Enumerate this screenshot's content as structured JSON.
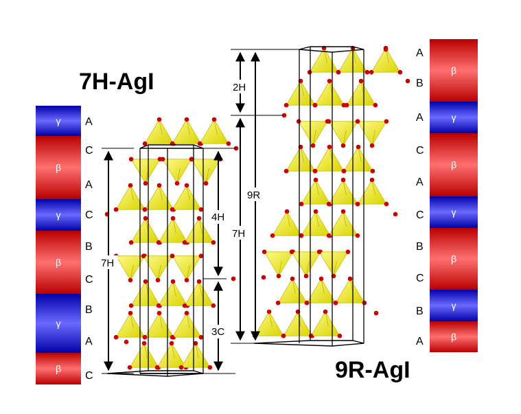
{
  "titles": {
    "left": "7H-AgI",
    "right": "9R-AgI"
  },
  "left_column": {
    "bands": [
      {
        "phase": "γ",
        "color": "blue"
      },
      {
        "phase": "β",
        "color": "red"
      },
      {
        "phase": "γ",
        "color": "blue"
      },
      {
        "phase": "β",
        "color": "red"
      },
      {
        "phase": "γ",
        "color": "blue"
      },
      {
        "phase": "β",
        "color": "red"
      }
    ],
    "stacking": [
      "A",
      "C",
      "A",
      "C",
      "B",
      "C",
      "B",
      "A",
      "C"
    ]
  },
  "right_column": {
    "bands": [
      {
        "phase": "β",
        "color": "red"
      },
      {
        "phase": "γ",
        "color": "blue"
      },
      {
        "phase": "β",
        "color": "red"
      },
      {
        "phase": "γ",
        "color": "blue"
      },
      {
        "phase": "β",
        "color": "red"
      },
      {
        "phase": "γ",
        "color": "blue"
      },
      {
        "phase": "β",
        "color": "red"
      }
    ],
    "stacking": [
      "A",
      "B",
      "A",
      "C",
      "A",
      "C",
      "B",
      "C",
      "B",
      "A"
    ]
  },
  "dimension_labels": {
    "left_7h": "7H",
    "inner_4h": "4H",
    "inner_3c": "3C",
    "right_2h": "2H",
    "right_7h": "7H",
    "right_9r": "9R"
  },
  "colors": {
    "red_band": "#f02020",
    "blue_band": "#2a2ae6",
    "tetrahedron": "#f2ee1a",
    "atom": "#cc0000"
  }
}
